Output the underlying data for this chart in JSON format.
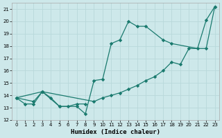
{
  "title": "",
  "xlabel": "Humidex (Indice chaleur)",
  "ylabel": "",
  "bg_color": "#cde8ea",
  "grid_color": "#b8d8da",
  "line_color": "#1a7a6e",
  "xlim": [
    -0.5,
    23.5
  ],
  "ylim": [
    12,
    21.5
  ],
  "xticks": [
    0,
    1,
    2,
    3,
    4,
    5,
    6,
    7,
    8,
    9,
    10,
    11,
    12,
    13,
    14,
    15,
    16,
    17,
    18,
    19,
    20,
    21,
    22,
    23
  ],
  "yticks": [
    12,
    13,
    14,
    15,
    16,
    17,
    18,
    19,
    20,
    21
  ],
  "line1_x": [
    0,
    1,
    2,
    3,
    4,
    5,
    6,
    7,
    8
  ],
  "line1_y": [
    13.8,
    13.3,
    13.3,
    14.3,
    13.8,
    13.1,
    13.1,
    13.3,
    13.3
  ],
  "line2_x": [
    0,
    3,
    5,
    7,
    8,
    9,
    10,
    11,
    12,
    13,
    14,
    15,
    17,
    18,
    21,
    22,
    23
  ],
  "line2_y": [
    13.8,
    14.3,
    13.1,
    13.1,
    12.5,
    15.2,
    15.3,
    18.2,
    18.5,
    20.0,
    19.6,
    19.6,
    18.5,
    18.2,
    17.8,
    20.1,
    21.2
  ],
  "line3_x": [
    0,
    2,
    3,
    9,
    10,
    11,
    12,
    13,
    14,
    15,
    16,
    17,
    18,
    19,
    20,
    22,
    23
  ],
  "line3_y": [
    13.8,
    13.5,
    14.3,
    13.5,
    13.8,
    14.0,
    14.2,
    14.5,
    14.8,
    15.2,
    15.5,
    16.0,
    16.7,
    16.5,
    17.8,
    17.8,
    21.2
  ]
}
